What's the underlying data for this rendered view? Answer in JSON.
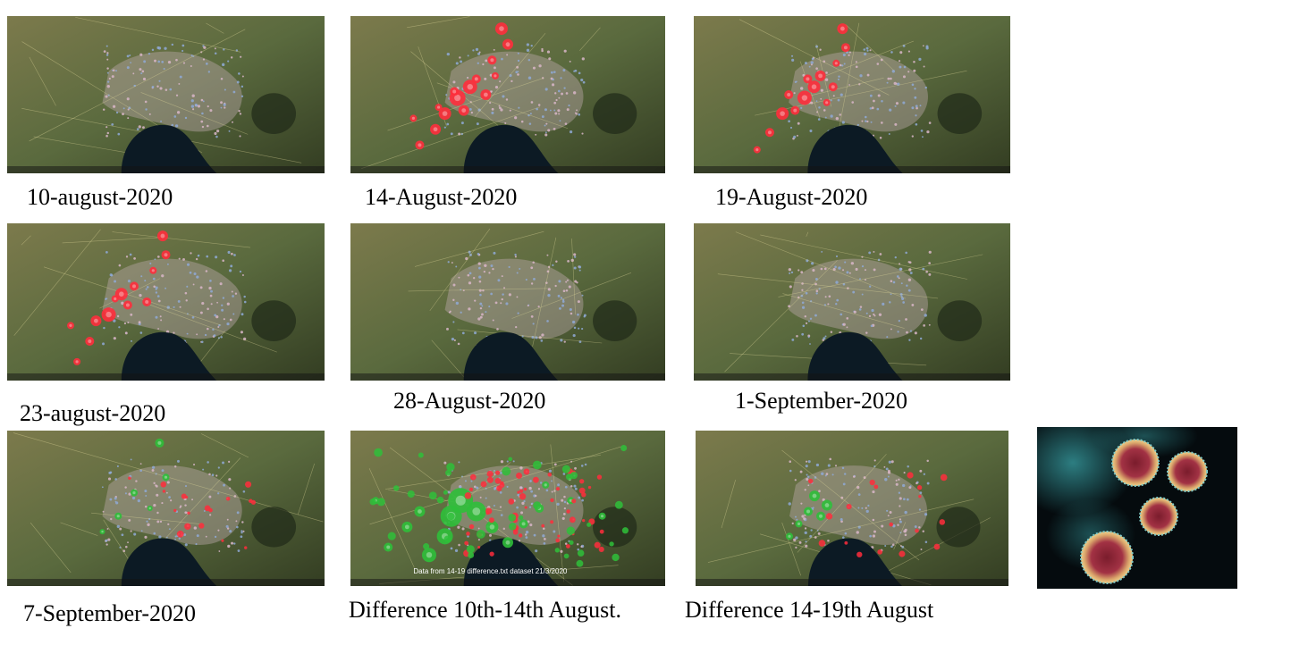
{
  "panels": [
    {
      "caption": "10-august-2020",
      "overlay_text": "",
      "marker_color": "#ff2d3c"
    },
    {
      "caption": "14-August-2020",
      "overlay_text": "",
      "marker_color": "#ff2d3c"
    },
    {
      "caption": "19-August-2020",
      "overlay_text": "",
      "marker_color": "#ff2d3c"
    },
    {
      "caption": "23-august-2020",
      "overlay_text": "",
      "marker_color": "#ff2d3c"
    },
    {
      "caption": "28-August-2020",
      "overlay_text": "",
      "marker_color": "#ff2d3c"
    },
    {
      "caption": "1-September-2020",
      "overlay_text": "",
      "marker_color": "#ff2d3c"
    },
    {
      "caption": "7-September-2020",
      "overlay_text": "",
      "marker_color": "#2fbf3a"
    },
    {
      "caption": "Difference 10th-14th August.",
      "overlay_text": "Data from 14-19 difference.txt dataset 21/3/2020",
      "marker_color": "#2fbf3a"
    },
    {
      "caption": "Difference  14-19th August",
      "overlay_text": "",
      "marker_color": "#2fbf3a"
    }
  ],
  "colors": {
    "land": "#5a6a3e",
    "water": "#0c1a24",
    "urban": "#b7a7a6",
    "increase_marker": "#ff2d3c",
    "decrease_marker": "#2fbf3a",
    "virus_body": "#d9a36a",
    "virus_core": "#9b2b3a",
    "virus_halo": "#3aa4a8"
  },
  "virus_image": {
    "icon": "coronavirus-micrograph-icon"
  }
}
